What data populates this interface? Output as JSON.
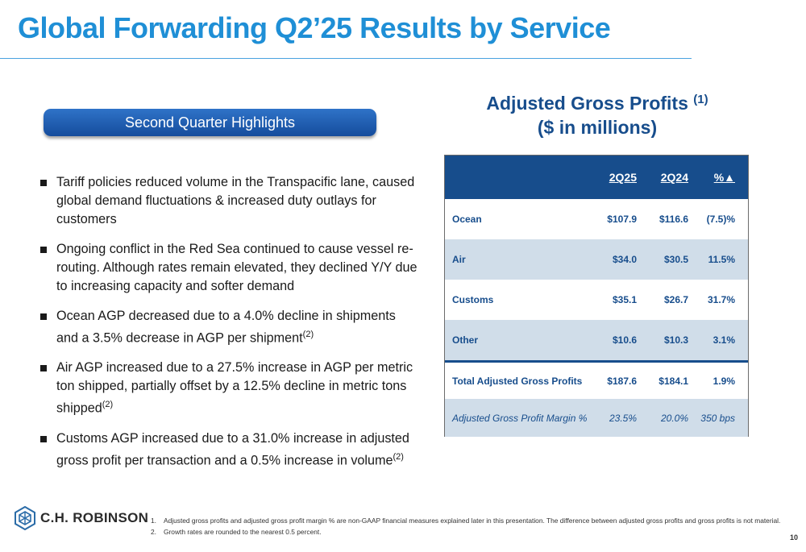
{
  "title": "Global Forwarding Q2’25 Results by Service",
  "highlights_label": "Second Quarter Highlights",
  "bullets": [
    {
      "text": "Tariff policies reduced volume in the Transpacific lane, caused global demand fluctuations & increased duty outlays for customers",
      "sup": ""
    },
    {
      "text": "Ongoing conflict in the Red Sea continued to cause vessel re-routing. Although rates remain elevated, they declined Y/Y due to increasing capacity and softer demand",
      "sup": ""
    },
    {
      "text": "Ocean AGP decreased due to a 4.0% decline in shipments and a 3.5% decrease in AGP per shipment",
      "sup": "(2)"
    },
    {
      "text": "Air AGP increased due to a 27.5% increase in AGP per metric ton shipped, partially offset by a 12.5% decline in metric tons shipped",
      "sup": "(2)"
    },
    {
      "text": "Customs AGP increased due to a 31.0% increase in adjusted gross profit per transaction and a 0.5% increase in volume",
      "sup": "(2)"
    }
  ],
  "agp": {
    "title_line1": "Adjusted Gross Profits",
    "title_sup": "(1)",
    "title_line2": "($ in millions)"
  },
  "table": {
    "headers": [
      "2Q25",
      "2Q24",
      "%▲"
    ],
    "rows": [
      {
        "label": "Ocean",
        "v1": "$107.9",
        "v2": "$116.6",
        "v3": "(7.5)%"
      },
      {
        "label": "Air",
        "v1": "$34.0",
        "v2": "$30.5",
        "v3": "11.5%"
      },
      {
        "label": "Customs",
        "v1": "$35.1",
        "v2": "$26.7",
        "v3": "31.7%"
      },
      {
        "label": "Other",
        "v1": "$10.6",
        "v2": "$10.3",
        "v3": "3.1%"
      }
    ],
    "total": {
      "label": "Total Adjusted Gross Profits",
      "v1": "$187.6",
      "v2": "$184.1",
      "v3": "1.9%"
    },
    "margin": {
      "label": "Adjusted Gross Profit Margin %",
      "v1": "23.5%",
      "v2": "20.0%",
      "v3": "350 bps"
    }
  },
  "logo_text": "C.H. ROBINSON",
  "footnotes": [
    {
      "num": "1.",
      "text": "Adjusted gross profits and adjusted gross profit margin % are non-GAAP financial measures explained later in this presentation. The difference between adjusted gross profits and gross profits is not material."
    },
    {
      "num": "2.",
      "text": "Growth rates are rounded to the nearest 0.5 percent."
    }
  ],
  "page_number": "10",
  "colors": {
    "title_blue": "#1f8fd6",
    "navy": "#174d8c",
    "row_shade": "#d0dde9"
  }
}
